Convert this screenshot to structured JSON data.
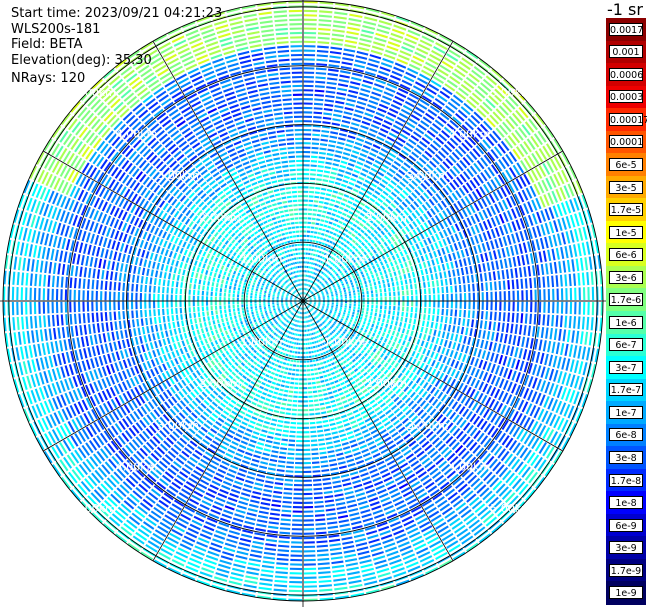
{
  "header": {
    "start_time": "Start time: 2023/09/21 04:21:23",
    "instrument": "WLS200s-181",
    "field": "Field: BETA",
    "elevation": "Elevation(deg): 35.30",
    "nrays": "NRays: 120"
  },
  "chart_data": {
    "type": "heatmap",
    "projection": "polar-ppi",
    "field": "BETA",
    "elevation_deg": 35.3,
    "nrays": 120,
    "range_rings_km": [
      1,
      2,
      3,
      4,
      5
    ],
    "ring_labels": [
      "1.00km",
      "2.00km",
      "3.00km",
      "4.00km",
      "5.00km"
    ],
    "max_range_km": 5.1,
    "spokes_every_deg": 30,
    "colorbar": {
      "unit_title": "-1 sr",
      "ticks": [
        "0.0017",
        "0.001",
        "0.0006",
        "0.0003",
        "0.00017",
        "0.0001",
        "6e-5",
        "3e-5",
        "1.7e-5",
        "1e-5",
        "6e-6",
        "3e-6",
        "1.7e-6",
        "1e-6",
        "6e-7",
        "3e-7",
        "1.7e-7",
        "1e-7",
        "6e-8",
        "3e-8",
        "1.7e-8",
        "1e-8",
        "6e-9",
        "3e-9",
        "1.7e-9",
        "1e-9"
      ],
      "colors": [
        "#8b0000",
        "#b00000",
        "#d20000",
        "#ee0000",
        "#ff2a00",
        "#ff5500",
        "#ff8000",
        "#ffaa00",
        "#ffd000",
        "#ffff00",
        "#d8ff1f",
        "#aaff50",
        "#80ff80",
        "#55ffaa",
        "#2affd5",
        "#00ffff",
        "#00d4ff",
        "#00aaff",
        "#0080ff",
        "#0055ff",
        "#002aff",
        "#0000ff",
        "#0000d0",
        "#0000a8",
        "#000080",
        "#000060"
      ]
    },
    "radial_profile_level": [
      {
        "range_km": 0.0,
        "level": 15.5
      },
      {
        "range_km": 0.6,
        "level": 16.0
      },
      {
        "range_km": 1.2,
        "level": 15.2
      },
      {
        "range_km": 2.0,
        "level": 14.8
      },
      {
        "range_km": 2.8,
        "level": 17.8
      },
      {
        "range_km": 3.5,
        "level": 19.0
      },
      {
        "range_km": 4.2,
        "level": 18.6
      },
      {
        "range_km": 4.8,
        "level": 15.8
      },
      {
        "range_km": 5.1,
        "level": 15.0
      }
    ],
    "aerosol_band": {
      "range_km": [
        4.4,
        5.1
      ],
      "azimuth_deg": [
        295,
        70
      ],
      "level": 11.5
    }
  }
}
